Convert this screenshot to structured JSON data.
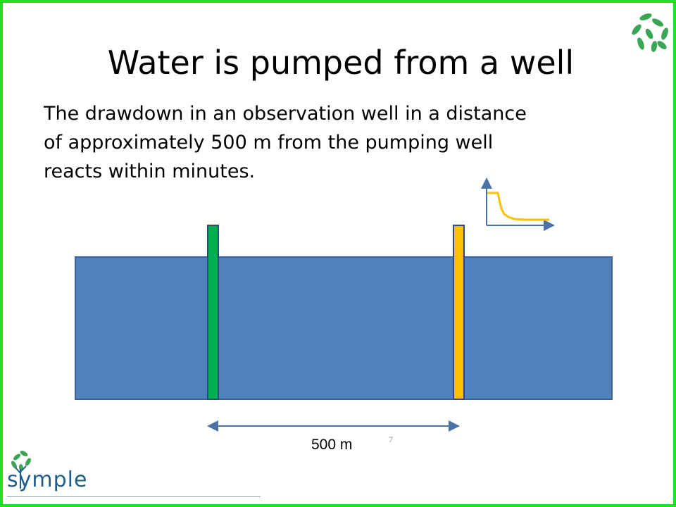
{
  "slide": {
    "title": "Water is pumped from a well",
    "body_lines": [
      "The drawdown in an observation well in a distance",
      "of approximately 500 m from the pumping well",
      "reacts within minutes."
    ],
    "distance_label": "500 m",
    "page_number": "7",
    "logo_text": "symple"
  },
  "colors": {
    "border": "#22dd22",
    "aquifer": "#4f81bd",
    "pumping_well": "#00b050",
    "observation_well": "#ffc000",
    "arrow": "#4a72a8",
    "drawdown_curve": "#ffc000",
    "leaf": "#3aa655"
  },
  "icons": {
    "top_right": "leaves-icon",
    "bottom_left": "symple-tree-logo"
  }
}
